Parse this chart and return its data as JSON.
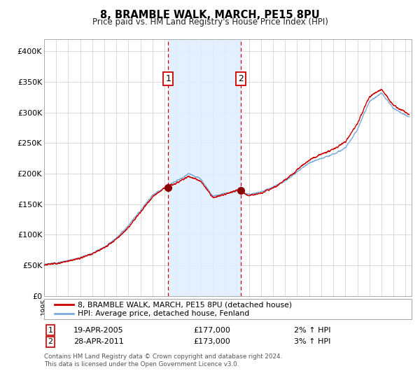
{
  "title": "8, BRAMBLE WALK, MARCH, PE15 8PU",
  "subtitle": "Price paid vs. HM Land Registry's House Price Index (HPI)",
  "legend_line1": "8, BRAMBLE WALK, MARCH, PE15 8PU (detached house)",
  "legend_line2": "HPI: Average price, detached house, Fenland",
  "footnote": "Contains HM Land Registry data © Crown copyright and database right 2024.\nThis data is licensed under the Open Government Licence v3.0.",
  "purchase1_date": "19-APR-2005",
  "purchase1_price": "£177,000",
  "purchase1_hpi": "2% ↑ HPI",
  "purchase2_date": "28-APR-2011",
  "purchase2_price": "£173,000",
  "purchase2_hpi": "3% ↑ HPI",
  "hpi_line_color": "#7aabdc",
  "price_line_color": "#cc0000",
  "dot_color": "#8b0000",
  "vline_color": "#cc0000",
  "shade_color": "#ddeeff",
  "background_color": "#ffffff",
  "grid_color": "#cccccc",
  "ylim": [
    0,
    420000
  ],
  "xlim_start": 1995.0,
  "xlim_end": 2025.5,
  "purchase1_year": 2005.3,
  "purchase2_year": 2011.33,
  "purchase1_price_val": 177000,
  "purchase2_price_val": 173000
}
